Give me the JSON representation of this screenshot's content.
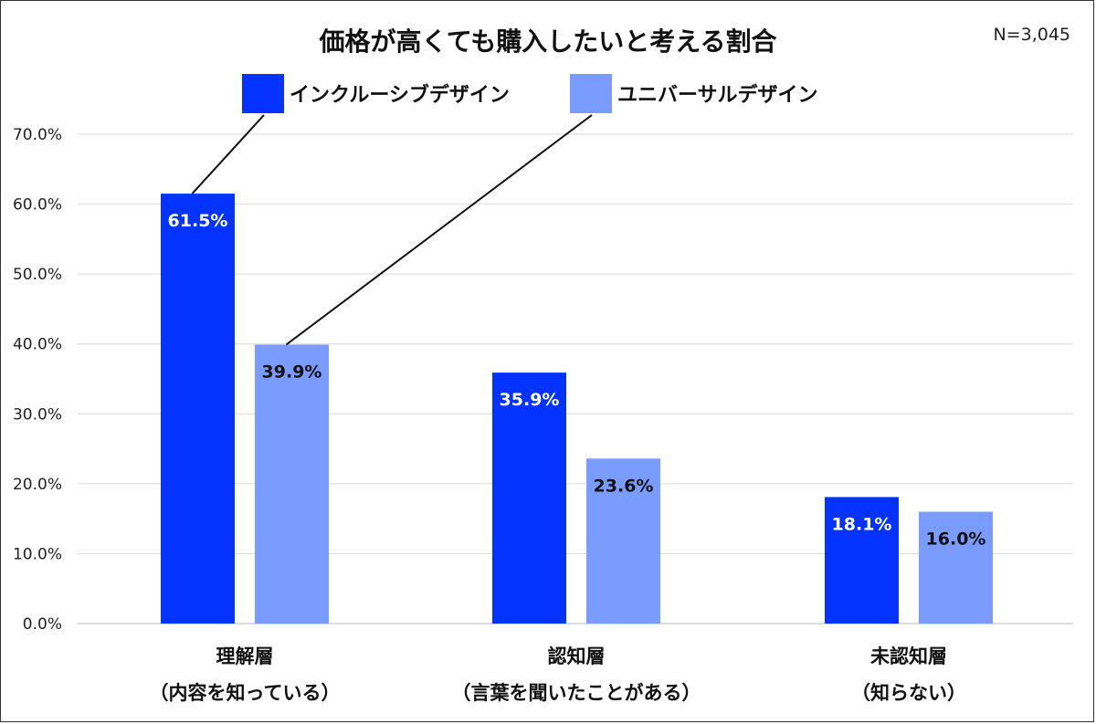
{
  "chart_data": {
    "type": "bar",
    "title": "価格が高くても購入したいと考える割合",
    "annotation": "N=3,045",
    "categories": [
      {
        "line1": "理解層",
        "line2": "（内容を知っている）"
      },
      {
        "line1": "認知層",
        "line2": "（言葉を聞いたことがある）"
      },
      {
        "line1": "未認知層",
        "line2": "（知らない）"
      }
    ],
    "series": [
      {
        "name": "インクルーシブデザイン",
        "color": "#0433ff",
        "values": [
          61.5,
          35.9,
          18.1
        ],
        "labels": [
          "61.5%",
          "35.9%",
          "18.1%"
        ],
        "label_color": "#ffffff"
      },
      {
        "name": "ユニバーサルデザイン",
        "color": "#7a9bff",
        "values": [
          39.9,
          23.6,
          16.0
        ],
        "labels": [
          "39.9%",
          "23.6%",
          "16.0%"
        ],
        "label_color": "#111111"
      }
    ],
    "ylim": [
      0,
      70
    ],
    "yticks": [
      "0.0%",
      "10.0%",
      "20.0%",
      "30.0%",
      "40.0%",
      "50.0%",
      "60.0%",
      "70.0%"
    ],
    "grid": true,
    "legend": "top-center"
  }
}
